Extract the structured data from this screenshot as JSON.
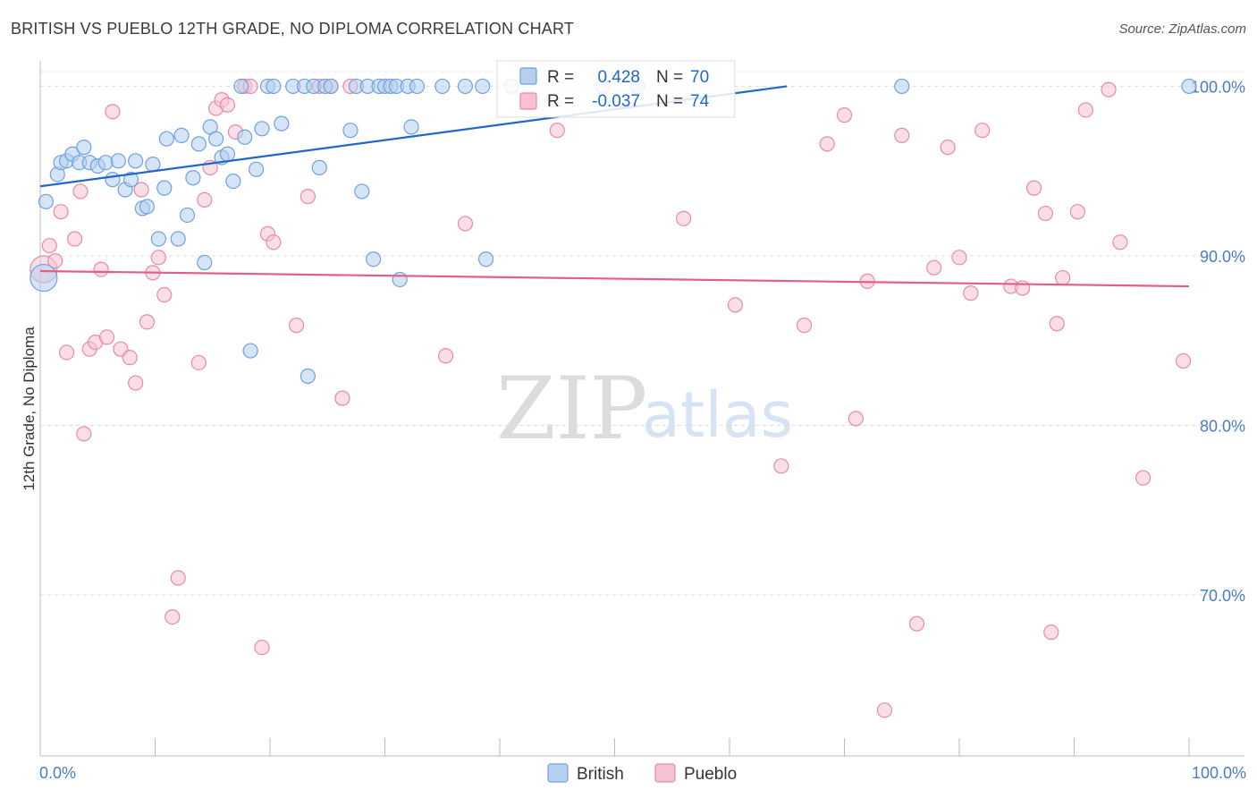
{
  "title": "BRITISH VS PUEBLO 12TH GRADE, NO DIPLOMA CORRELATION CHART",
  "source": "Source: ZipAtlas.com",
  "watermark": {
    "part1": "ZIP",
    "part2": "atlas"
  },
  "colors": {
    "british": "#6ea1df",
    "british_fill": "#b5cfef",
    "british_line": "#2266cc",
    "pueblo": "#e88aa8",
    "pueblo_fill": "#f6c2d3",
    "pueblo_line": "#e0608a",
    "tick_text": "#4a7cc4",
    "grid": "#dddddd"
  },
  "stats_box": {
    "rows": [
      {
        "r_label": "R =",
        "r_value": "0.428",
        "n_label": "N =",
        "n_value": "70"
      },
      {
        "r_label": "R =",
        "r_value": "-0.037",
        "n_label": "N =",
        "n_value": "74"
      }
    ]
  },
  "legend": {
    "items": [
      "British",
      "Pueblo"
    ]
  },
  "chart_data": {
    "type": "scatter",
    "title": "BRITISH VS PUEBLO 12TH GRADE, NO DIPLOMA CORRELATION CHART",
    "xlabel": "",
    "ylabel": "12th Grade, No Diploma",
    "xlim": [
      0,
      100
    ],
    "ylim": [
      60.5,
      101.5
    ],
    "x_tick_labels": [
      "0.0%",
      "100.0%"
    ],
    "y_ticks": [
      100,
      90,
      80,
      70
    ],
    "y_tick_labels": [
      "100.0%",
      "90.0%",
      "80.0%",
      "70.0%"
    ],
    "grid": true,
    "legend_position": "bottom-center",
    "series": [
      {
        "name": "British",
        "r": 0.428,
        "n": 70,
        "trend": {
          "x": [
            0,
            65
          ],
          "y": [
            94.1,
            100.0
          ]
        },
        "points": [
          [
            0.3,
            88.7
          ],
          [
            0.5,
            93.2
          ],
          [
            1.5,
            94.8
          ],
          [
            1.8,
            95.5
          ],
          [
            2.3,
            95.6
          ],
          [
            2.8,
            96.0
          ],
          [
            3.4,
            95.5
          ],
          [
            3.8,
            96.4
          ],
          [
            4.3,
            95.5
          ],
          [
            5.0,
            95.3
          ],
          [
            5.7,
            95.5
          ],
          [
            6.3,
            94.5
          ],
          [
            6.8,
            95.6
          ],
          [
            7.4,
            93.9
          ],
          [
            7.9,
            94.5
          ],
          [
            8.3,
            95.6
          ],
          [
            8.9,
            92.8
          ],
          [
            9.3,
            92.9
          ],
          [
            9.8,
            95.4
          ],
          [
            10.3,
            91.0
          ],
          [
            10.8,
            94.0
          ],
          [
            11.0,
            96.9
          ],
          [
            12.0,
            91.0
          ],
          [
            12.3,
            97.1
          ],
          [
            12.8,
            92.4
          ],
          [
            13.3,
            94.6
          ],
          [
            13.8,
            96.6
          ],
          [
            14.3,
            89.6
          ],
          [
            14.8,
            97.6
          ],
          [
            15.3,
            96.9
          ],
          [
            15.8,
            95.8
          ],
          [
            16.3,
            96.0
          ],
          [
            16.8,
            94.4
          ],
          [
            17.5,
            100.0
          ],
          [
            17.8,
            97.0
          ],
          [
            18.3,
            84.4
          ],
          [
            18.8,
            95.1
          ],
          [
            19.3,
            97.5
          ],
          [
            19.8,
            100.0
          ],
          [
            20.3,
            100.0
          ],
          [
            21.0,
            97.8
          ],
          [
            22.0,
            100.0
          ],
          [
            23.0,
            100.0
          ],
          [
            23.3,
            82.9
          ],
          [
            23.8,
            100.0
          ],
          [
            24.3,
            95.2
          ],
          [
            24.8,
            100.0
          ],
          [
            25.3,
            100.0
          ],
          [
            27.0,
            97.4
          ],
          [
            27.5,
            100.0
          ],
          [
            28.0,
            93.8
          ],
          [
            28.5,
            100.0
          ],
          [
            29.0,
            89.8
          ],
          [
            29.5,
            100.0
          ],
          [
            30.0,
            100.0
          ],
          [
            30.5,
            100.0
          ],
          [
            31.0,
            100.0
          ],
          [
            31.3,
            88.6
          ],
          [
            32.0,
            100.0
          ],
          [
            32.3,
            97.6
          ],
          [
            32.8,
            100.0
          ],
          [
            35.0,
            100.0
          ],
          [
            37.0,
            100.0
          ],
          [
            38.5,
            100.0
          ],
          [
            38.8,
            89.8
          ],
          [
            41.0,
            100.0
          ],
          [
            49.0,
            100.0
          ],
          [
            52.0,
            100.0
          ],
          [
            75.0,
            100.0
          ],
          [
            100.0,
            100.0
          ]
        ]
      },
      {
        "name": "Pueblo",
        "r": -0.037,
        "n": 74,
        "trend": {
          "x": [
            0,
            100
          ],
          "y": [
            89.1,
            88.2
          ]
        },
        "points": [
          [
            0.3,
            89.2
          ],
          [
            0.8,
            90.6
          ],
          [
            1.3,
            89.7
          ],
          [
            1.8,
            92.6
          ],
          [
            2.3,
            84.3
          ],
          [
            3.0,
            91.0
          ],
          [
            3.5,
            93.8
          ],
          [
            3.8,
            79.5
          ],
          [
            4.3,
            84.5
          ],
          [
            4.8,
            84.9
          ],
          [
            5.3,
            89.2
          ],
          [
            5.8,
            85.2
          ],
          [
            6.3,
            98.5
          ],
          [
            7.0,
            84.5
          ],
          [
            7.8,
            84.0
          ],
          [
            8.3,
            82.5
          ],
          [
            8.8,
            93.9
          ],
          [
            9.3,
            86.1
          ],
          [
            9.8,
            89.0
          ],
          [
            10.3,
            89.9
          ],
          [
            10.8,
            87.7
          ],
          [
            11.5,
            68.7
          ],
          [
            12.0,
            71.0
          ],
          [
            13.8,
            83.7
          ],
          [
            14.3,
            93.3
          ],
          [
            14.8,
            95.2
          ],
          [
            15.3,
            98.7
          ],
          [
            15.8,
            99.2
          ],
          [
            16.3,
            98.9
          ],
          [
            17.0,
            97.3
          ],
          [
            17.8,
            100.0
          ],
          [
            18.3,
            100.0
          ],
          [
            19.3,
            66.9
          ],
          [
            19.8,
            91.3
          ],
          [
            20.3,
            90.8
          ],
          [
            22.3,
            85.9
          ],
          [
            23.3,
            93.5
          ],
          [
            24.3,
            100.0
          ],
          [
            25.3,
            100.0
          ],
          [
            26.3,
            81.6
          ],
          [
            27.0,
            100.0
          ],
          [
            35.3,
            84.1
          ],
          [
            37.0,
            91.9
          ],
          [
            45.0,
            97.4
          ],
          [
            52.0,
            100.0
          ],
          [
            56.0,
            92.2
          ],
          [
            60.5,
            87.1
          ],
          [
            64.5,
            77.6
          ],
          [
            66.5,
            85.9
          ],
          [
            68.5,
            96.6
          ],
          [
            70.0,
            98.3
          ],
          [
            71.0,
            80.4
          ],
          [
            72.0,
            88.5
          ],
          [
            73.5,
            63.2
          ],
          [
            75.0,
            97.1
          ],
          [
            76.3,
            68.3
          ],
          [
            77.8,
            89.3
          ],
          [
            79.0,
            96.4
          ],
          [
            80.0,
            89.9
          ],
          [
            81.0,
            87.8
          ],
          [
            82.0,
            97.4
          ],
          [
            84.5,
            88.2
          ],
          [
            85.5,
            88.1
          ],
          [
            86.5,
            94.0
          ],
          [
            87.5,
            92.5
          ],
          [
            88.0,
            67.8
          ],
          [
            88.5,
            86.0
          ],
          [
            89.0,
            88.7
          ],
          [
            90.3,
            92.6
          ],
          [
            91.0,
            98.6
          ],
          [
            93.0,
            99.8
          ],
          [
            94.0,
            90.8
          ],
          [
            96.0,
            76.9
          ],
          [
            99.5,
            83.8
          ]
        ]
      }
    ]
  }
}
